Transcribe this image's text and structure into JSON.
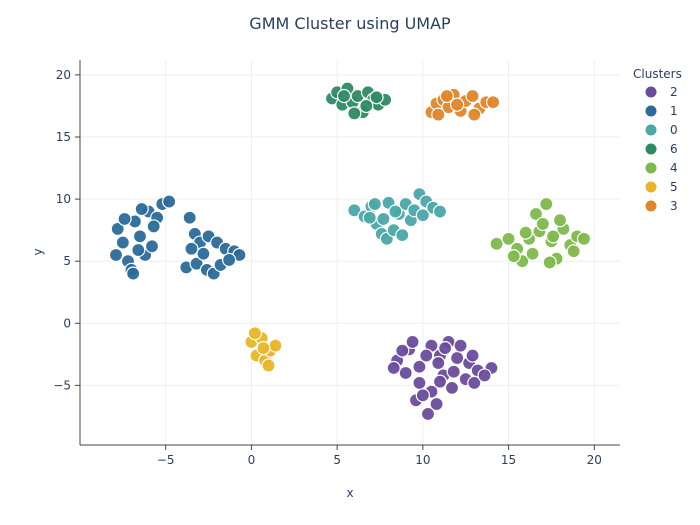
{
  "chart_data": {
    "type": "scatter",
    "title": "GMM Cluster using UMAP",
    "xlabel": "x",
    "ylabel": "y",
    "xlim": [
      -10,
      21.5
    ],
    "ylim": [
      -9.8,
      21.2
    ],
    "x_ticks": [
      -5,
      0,
      5,
      10,
      15,
      20
    ],
    "y_ticks": [
      -5,
      0,
      5,
      10,
      15,
      20
    ],
    "x_tick_labels": [
      "−5",
      "0",
      "5",
      "10",
      "15",
      "20"
    ],
    "y_tick_labels": [
      "−5",
      "0",
      "5",
      "10",
      "15",
      "20"
    ],
    "grid": true,
    "legend": {
      "title": "Clusters",
      "placement": "top-right"
    },
    "series": [
      {
        "name": "2",
        "color": "#6a4c9c",
        "points": [
          [
            8.5,
            -3.0
          ],
          [
            9.2,
            -2.1
          ],
          [
            9.8,
            -3.5
          ],
          [
            10.5,
            -1.8
          ],
          [
            11.0,
            -2.6
          ],
          [
            11.5,
            -1.5
          ],
          [
            12.0,
            -2.8
          ],
          [
            12.7,
            -3.2
          ],
          [
            13.2,
            -3.8
          ],
          [
            14.0,
            -3.6
          ],
          [
            9.0,
            -4.0
          ],
          [
            9.8,
            -4.8
          ],
          [
            10.5,
            -5.5
          ],
          [
            11.2,
            -4.2
          ],
          [
            11.8,
            -3.9
          ],
          [
            12.5,
            -4.5
          ],
          [
            13.0,
            -4.8
          ],
          [
            10.8,
            -6.5
          ],
          [
            10.3,
            -7.3
          ],
          [
            9.6,
            -6.2
          ],
          [
            10.9,
            -3.2
          ],
          [
            11.3,
            -2.0
          ],
          [
            8.8,
            -2.2
          ],
          [
            12.2,
            -1.8
          ],
          [
            10.2,
            -2.6
          ],
          [
            11.7,
            -5.2
          ],
          [
            10.0,
            -5.8
          ],
          [
            12.9,
            -2.6
          ],
          [
            9.4,
            -1.5
          ],
          [
            13.6,
            -4.2
          ],
          [
            8.3,
            -3.6
          ],
          [
            11.0,
            -4.7
          ]
        ]
      },
      {
        "name": "1",
        "color": "#2b6a99",
        "points": [
          [
            -7.8,
            7.6
          ],
          [
            -7.5,
            6.5
          ],
          [
            -7.2,
            5.0
          ],
          [
            -7.0,
            4.3
          ],
          [
            -6.8,
            8.2
          ],
          [
            -6.5,
            7.0
          ],
          [
            -6.2,
            5.5
          ],
          [
            -6.0,
            9.0
          ],
          [
            -5.8,
            6.2
          ],
          [
            -5.5,
            8.5
          ],
          [
            -5.2,
            9.6
          ],
          [
            -4.8,
            9.8
          ],
          [
            -7.9,
            5.5
          ],
          [
            -6.9,
            4.0
          ],
          [
            -5.7,
            7.8
          ],
          [
            -6.4,
            9.2
          ],
          [
            -7.4,
            8.4
          ],
          [
            -6.6,
            5.9
          ],
          [
            -3.6,
            8.5
          ],
          [
            -3.3,
            7.2
          ],
          [
            -3.0,
            6.5
          ],
          [
            -2.5,
            7.0
          ],
          [
            -2.0,
            6.5
          ],
          [
            -1.5,
            6.0
          ],
          [
            -1.0,
            5.8
          ],
          [
            -0.7,
            5.5
          ],
          [
            -3.8,
            4.5
          ],
          [
            -3.2,
            4.8
          ],
          [
            -2.6,
            4.3
          ],
          [
            -2.2,
            4.0
          ],
          [
            -1.8,
            4.7
          ],
          [
            -1.3,
            5.1
          ],
          [
            -2.8,
            5.6
          ],
          [
            -3.5,
            6.0
          ]
        ]
      },
      {
        "name": "0",
        "color": "#4aa8a6",
        "points": [
          [
            6.0,
            9.1
          ],
          [
            6.6,
            8.6
          ],
          [
            7.0,
            9.4
          ],
          [
            7.3,
            8.0
          ],
          [
            7.6,
            7.2
          ],
          [
            7.9,
            6.8
          ],
          [
            8.3,
            7.5
          ],
          [
            8.6,
            8.8
          ],
          [
            9.0,
            9.6
          ],
          [
            9.3,
            8.3
          ],
          [
            9.8,
            10.4
          ],
          [
            10.2,
            9.8
          ],
          [
            10.6,
            9.3
          ],
          [
            11.0,
            9.0
          ],
          [
            8.0,
            9.7
          ],
          [
            7.2,
            9.6
          ],
          [
            8.8,
            7.1
          ],
          [
            9.5,
            9.1
          ],
          [
            6.9,
            8.5
          ],
          [
            8.4,
            9.0
          ],
          [
            7.7,
            8.4
          ],
          [
            10.0,
            8.7
          ]
        ]
      },
      {
        "name": "6",
        "color": "#2e8b63",
        "points": [
          [
            4.7,
            18.1
          ],
          [
            5.0,
            18.6
          ],
          [
            5.3,
            17.6
          ],
          [
            5.6,
            18.9
          ],
          [
            5.9,
            17.8
          ],
          [
            6.2,
            18.3
          ],
          [
            6.5,
            17.0
          ],
          [
            6.8,
            18.6
          ],
          [
            7.1,
            18.0
          ],
          [
            7.4,
            17.6
          ],
          [
            7.8,
            18.0
          ],
          [
            6.0,
            16.9
          ],
          [
            5.4,
            18.3
          ],
          [
            6.7,
            17.5
          ],
          [
            7.3,
            18.2
          ]
        ]
      },
      {
        "name": "4",
        "color": "#7fb84c",
        "points": [
          [
            14.3,
            6.4
          ],
          [
            15.0,
            6.8
          ],
          [
            15.5,
            6.0
          ],
          [
            15.8,
            5.0
          ],
          [
            16.2,
            6.8
          ],
          [
            16.6,
            8.8
          ],
          [
            16.8,
            7.4
          ],
          [
            17.2,
            9.6
          ],
          [
            17.5,
            6.6
          ],
          [
            17.8,
            5.2
          ],
          [
            18.2,
            7.6
          ],
          [
            18.6,
            6.3
          ],
          [
            19.0,
            7.0
          ],
          [
            19.4,
            6.8
          ],
          [
            16.0,
            7.3
          ],
          [
            17.0,
            8.0
          ],
          [
            18.0,
            8.3
          ],
          [
            16.4,
            5.6
          ],
          [
            17.6,
            7.0
          ],
          [
            18.8,
            5.8
          ],
          [
            15.3,
            5.4
          ],
          [
            17.4,
            4.9
          ]
        ]
      },
      {
        "name": "5",
        "color": "#e8b526",
        "points": [
          [
            0.0,
            -1.5
          ],
          [
            0.3,
            -2.6
          ],
          [
            0.6,
            -1.2
          ],
          [
            0.8,
            -3.0
          ],
          [
            1.1,
            -2.2
          ],
          [
            1.4,
            -1.8
          ],
          [
            1.0,
            -3.4
          ],
          [
            0.2,
            -0.8
          ],
          [
            0.7,
            -2.0
          ]
        ]
      },
      {
        "name": "3",
        "color": "#e0862a",
        "points": [
          [
            10.5,
            17.0
          ],
          [
            10.8,
            17.7
          ],
          [
            11.2,
            18.0
          ],
          [
            11.5,
            17.4
          ],
          [
            11.8,
            18.4
          ],
          [
            12.2,
            17.1
          ],
          [
            12.5,
            17.9
          ],
          [
            12.9,
            18.3
          ],
          [
            13.3,
            17.3
          ],
          [
            13.7,
            17.8
          ],
          [
            14.1,
            17.8
          ],
          [
            10.9,
            16.8
          ],
          [
            12.0,
            17.6
          ],
          [
            13.0,
            16.8
          ],
          [
            11.4,
            18.3
          ]
        ]
      }
    ]
  }
}
